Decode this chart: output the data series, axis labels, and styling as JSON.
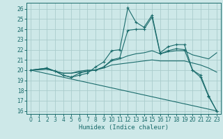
{
  "xlabel": "Humidex (Indice chaleur)",
  "bg_color": "#cde8e8",
  "line_color": "#1a6b6b",
  "grid_color": "#aacccc",
  "xlim": [
    -0.5,
    23.5
  ],
  "ylim": [
    15.7,
    26.6
  ],
  "xticks": [
    0,
    1,
    2,
    3,
    4,
    5,
    6,
    7,
    8,
    9,
    10,
    11,
    12,
    13,
    14,
    15,
    16,
    17,
    18,
    19,
    20,
    21,
    22,
    23
  ],
  "yticks": [
    16,
    17,
    18,
    19,
    20,
    21,
    22,
    23,
    24,
    25,
    26
  ],
  "lines": [
    {
      "x": [
        0,
        2,
        3,
        4,
        5,
        6,
        7,
        8,
        9,
        10,
        11,
        12,
        13,
        14,
        15,
        16,
        17,
        18,
        19,
        20,
        21,
        22,
        23
      ],
      "y": [
        20.0,
        20.2,
        19.9,
        19.5,
        19.3,
        19.5,
        19.7,
        20.3,
        20.8,
        21.9,
        22.0,
        26.1,
        24.7,
        24.2,
        25.4,
        21.7,
        22.3,
        22.5,
        22.5,
        20.0,
        19.3,
        17.4,
        16.0
      ],
      "marker": true
    },
    {
      "x": [
        0,
        2,
        3,
        4,
        5,
        6,
        7,
        8,
        9,
        10,
        11,
        12,
        13,
        14,
        15,
        16,
        17,
        18,
        19,
        20,
        21,
        22,
        23
      ],
      "y": [
        20.0,
        20.2,
        19.9,
        19.5,
        19.3,
        19.7,
        19.9,
        20.0,
        20.3,
        21.0,
        21.2,
        23.9,
        24.0,
        24.0,
        25.2,
        21.6,
        21.9,
        22.1,
        22.0,
        20.0,
        19.5,
        17.5,
        16.0
      ],
      "marker": true
    },
    {
      "x": [
        0,
        2,
        3,
        4,
        5,
        6,
        7,
        8,
        9,
        10,
        11,
        12,
        13,
        14,
        15,
        16,
        17,
        18,
        19,
        20,
        21,
        22,
        23
      ],
      "y": [
        20.0,
        20.1,
        19.9,
        19.7,
        19.7,
        19.8,
        19.9,
        20.0,
        20.3,
        20.9,
        21.1,
        21.4,
        21.6,
        21.7,
        21.9,
        21.6,
        21.8,
        21.9,
        21.9,
        21.5,
        21.3,
        21.1,
        21.7
      ],
      "marker": false
    },
    {
      "x": [
        0,
        2,
        3,
        4,
        5,
        6,
        7,
        8,
        9,
        10,
        11,
        12,
        13,
        14,
        15,
        16,
        17,
        18,
        19,
        20,
        21,
        22,
        23
      ],
      "y": [
        20.0,
        20.1,
        19.9,
        19.7,
        19.7,
        19.9,
        20.0,
        20.0,
        20.2,
        20.5,
        20.6,
        20.7,
        20.8,
        20.9,
        21.0,
        20.9,
        20.9,
        20.9,
        20.9,
        20.7,
        20.5,
        20.2,
        19.8
      ],
      "marker": false
    },
    {
      "x": [
        0,
        23
      ],
      "y": [
        20.0,
        16.0
      ],
      "marker": false
    }
  ],
  "tick_fontsize": 5.5,
  "label_fontsize": 6.5
}
